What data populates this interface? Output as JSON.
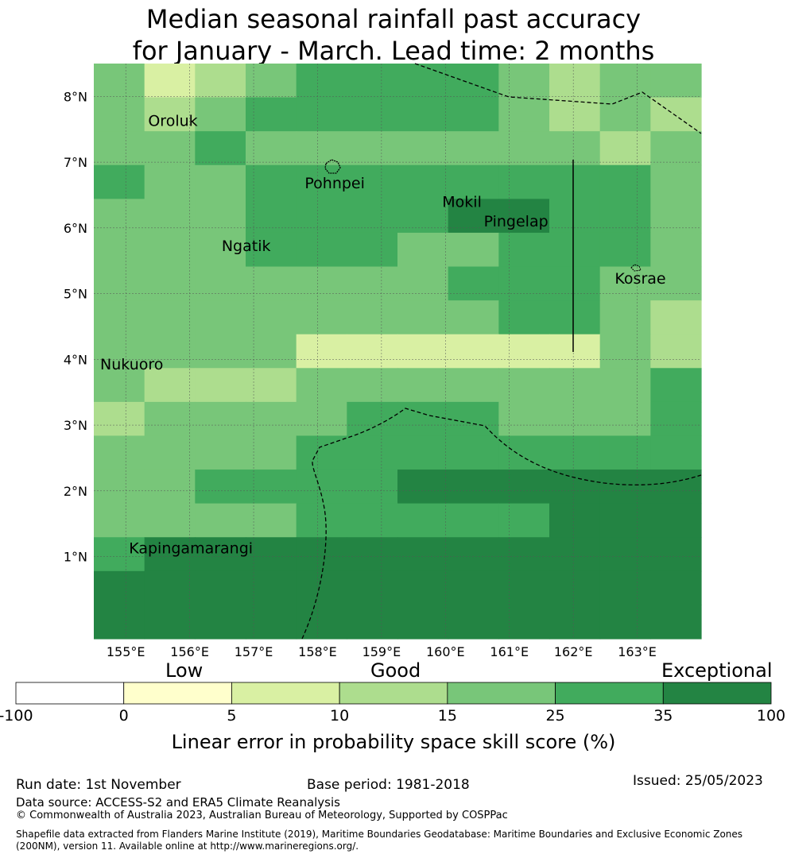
{
  "title": {
    "line1": "Median seasonal rainfall past accuracy",
    "line2": "for January - March. Lead time: 2 months"
  },
  "map": {
    "lon_range": [
      154.5,
      164.0
    ],
    "lat_range": [
      -0.25,
      8.5
    ],
    "lon_ticks": [
      {
        "v": 155,
        "t": "155°E"
      },
      {
        "v": 156,
        "t": "156°E"
      },
      {
        "v": 157,
        "t": "157°E"
      },
      {
        "v": 158,
        "t": "158°E"
      },
      {
        "v": 159,
        "t": "159°E"
      },
      {
        "v": 160,
        "t": "160°E"
      },
      {
        "v": 161,
        "t": "161°E"
      },
      {
        "v": 162,
        "t": "162°E"
      },
      {
        "v": 163,
        "t": "163°E"
      }
    ],
    "lat_ticks": [
      {
        "v": 1,
        "t": "1°N"
      },
      {
        "v": 2,
        "t": "2°N"
      },
      {
        "v": 3,
        "t": "3°N"
      },
      {
        "v": 4,
        "t": "4°N"
      },
      {
        "v": 5,
        "t": "5°N"
      },
      {
        "v": 6,
        "t": "6°N"
      },
      {
        "v": 7,
        "t": "7°N"
      },
      {
        "v": 8,
        "t": "8°N"
      }
    ],
    "places": [
      {
        "name": "Oroluk",
        "lon": 155.35,
        "lat": 7.55
      },
      {
        "name": "Pohnpei",
        "lon": 157.8,
        "lat": 6.6
      },
      {
        "name": "Mokil",
        "lon": 159.95,
        "lat": 6.32
      },
      {
        "name": "Pingelap",
        "lon": 160.6,
        "lat": 6.02
      },
      {
        "name": "Ngatik",
        "lon": 156.5,
        "lat": 5.65
      },
      {
        "name": "Kosrae",
        "lon": 162.65,
        "lat": 5.15
      },
      {
        "name": "Nukuoro",
        "lon": 154.6,
        "lat": 3.85
      },
      {
        "name": "Kapingamarangi",
        "lon": 155.05,
        "lat": 1.05
      }
    ],
    "grid": {
      "lon0": 154.5,
      "lat_top": 8.5,
      "cols": 12,
      "rows": 17,
      "codes": [
        "423455554344",
        "434555554343",
        "445444444434",
        "544555555554",
        "444555566554",
        "444555445554",
        "444444455544",
        "444444445543",
        "444422222243",
        "433344444445",
        "344445554445",
        "444455555555",
        "445555666666",
        "444455555666",
        "566666666666",
        "666666666666",
        "666666666666"
      ]
    }
  },
  "legend": {
    "labels": {
      "low": "Low",
      "good": "Good",
      "exceptional": "Exceptional"
    },
    "bins": [
      {
        "from": "-100",
        "to": "0",
        "color": "#ffffff"
      },
      {
        "from": "0",
        "to": "5",
        "color": "#ffffcc"
      },
      {
        "from": "5",
        "to": "10",
        "color": "#d9f0a3"
      },
      {
        "from": "10",
        "to": "15",
        "color": "#addd8e"
      },
      {
        "from": "15",
        "to": "25",
        "color": "#78c679"
      },
      {
        "from": "25",
        "to": "35",
        "color": "#41ab5d"
      },
      {
        "from": "35",
        "to": "100",
        "color": "#238443"
      }
    ],
    "ticks": [
      "-100",
      "0",
      "5",
      "10",
      "15",
      "25",
      "35",
      "100"
    ],
    "axis_label": "Linear error in probability space skill score (%)"
  },
  "footer": {
    "run_date": "Run date: 1st November",
    "base_period": "Base period: 1981-2018",
    "issued": "Issued: 25/05/2023",
    "data_source": "Data source: ACCESS-S2 and ERA5 Climate Reanalysis",
    "copyright": "© Commonwealth of Australia 2023, Australian Bureau of Meteorology, Supported by COSPPac",
    "shapefile": "Shapefile data extracted from Flanders Marine Institute (2019), Maritime Boundaries Geodatabase: Maritime Boundaries and Exclusive Economic Zones (200NM), version 11. Available online at http://www.marineregions.org/."
  }
}
